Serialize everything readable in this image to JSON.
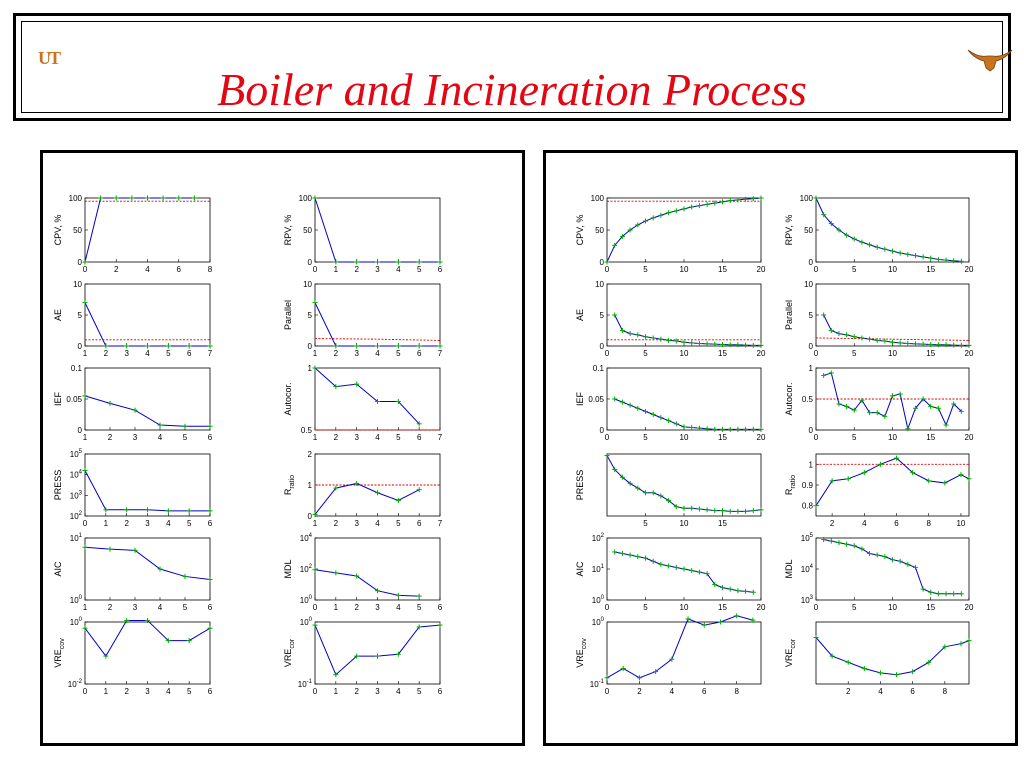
{
  "header": {
    "title": "Boiler and Incineration Process",
    "logo_text": "UT",
    "colors": {
      "title": "#e30613",
      "logo": "#c8741e",
      "series": "#0000cc",
      "marker": "#00aa00",
      "threshold": "#dd0000"
    }
  },
  "chart_data": [
    {
      "id": "L1",
      "panel": "left",
      "type": "line",
      "ylabel": "CPV, %",
      "ylog": false,
      "xlim": [
        0,
        8
      ],
      "xticks": [
        0,
        2,
        4,
        6,
        8
      ],
      "ylim": [
        0,
        100
      ],
      "yticks": [
        0,
        50,
        100
      ],
      "threshold": 95,
      "x": [
        0,
        1,
        2,
        3,
        4,
        5,
        6,
        7
      ],
      "y": [
        0,
        100,
        100,
        100,
        100,
        100,
        100,
        100
      ]
    },
    {
      "id": "L2",
      "panel": "left",
      "type": "line",
      "ylabel": "RPV, %",
      "ylog": false,
      "xlim": [
        0,
        6
      ],
      "xticks": [
        0,
        1,
        2,
        3,
        4,
        5,
        6
      ],
      "ylim": [
        0,
        100
      ],
      "yticks": [
        0,
        50,
        100
      ],
      "x": [
        0,
        1,
        2,
        3,
        4,
        5,
        6
      ],
      "y": [
        100,
        0,
        0,
        0,
        0,
        0,
        0
      ]
    },
    {
      "id": "L3",
      "panel": "left",
      "type": "line",
      "ylabel": "AE",
      "ylog": false,
      "xlim": [
        1,
        7
      ],
      "xticks": [
        1,
        2,
        3,
        4,
        5,
        6,
        7
      ],
      "ylim": [
        0,
        10
      ],
      "yticks": [
        0,
        5,
        10
      ],
      "threshold": 1,
      "x": [
        1,
        2,
        3,
        4,
        5,
        6,
        7
      ],
      "y": [
        7,
        0,
        0,
        0,
        0,
        0,
        0
      ]
    },
    {
      "id": "L4",
      "panel": "left",
      "type": "line",
      "ylabel": "Parallel",
      "ylog": false,
      "xlim": [
        1,
        7
      ],
      "xticks": [
        1,
        2,
        3,
        4,
        5,
        6,
        7
      ],
      "ylim": [
        0,
        10
      ],
      "yticks": [
        0,
        5,
        10
      ],
      "threshold_line": {
        "x": [
          1,
          4,
          7
        ],
        "y": [
          1.2,
          1.1,
          0.9
        ]
      },
      "x": [
        1,
        2,
        3,
        4,
        5,
        6,
        7
      ],
      "y": [
        7,
        0,
        0,
        0,
        0,
        0,
        0
      ]
    },
    {
      "id": "L5",
      "panel": "left",
      "type": "line",
      "ylabel": "IEF",
      "ylog": false,
      "xlim": [
        1,
        6
      ],
      "xticks": [
        1,
        2,
        3,
        4,
        5,
        6
      ],
      "ylim": [
        0,
        0.1
      ],
      "yticks": [
        0,
        0.05,
        0.1
      ],
      "x": [
        1,
        2,
        3,
        4,
        5,
        6
      ],
      "y": [
        0.055,
        0.043,
        0.032,
        0.008,
        0.006,
        0.006
      ]
    },
    {
      "id": "L6",
      "panel": "left",
      "type": "line",
      "ylabel": "Autocor.",
      "ylog": false,
      "xlim": [
        1,
        7
      ],
      "xticks": [
        1,
        2,
        3,
        4,
        5,
        6,
        7
      ],
      "ylim": [
        0.5,
        1
      ],
      "yticks": [
        0.5,
        1
      ],
      "threshold": 0.5,
      "x": [
        1,
        2,
        3,
        4,
        5,
        6
      ],
      "y": [
        1,
        0.85,
        0.87,
        0.73,
        0.73,
        0.55
      ]
    },
    {
      "id": "L7",
      "panel": "left",
      "type": "line",
      "ylabel": "PRESS",
      "ylog": true,
      "xlim": [
        0,
        6
      ],
      "xticks": [
        0,
        1,
        2,
        3,
        4,
        5,
        6
      ],
      "ylim": [
        2,
        5
      ],
      "yticks": [
        2,
        3,
        4,
        5
      ],
      "x": [
        0,
        1,
        2,
        3,
        4,
        5,
        6
      ],
      "y": [
        4.2,
        2.3,
        2.3,
        2.3,
        2.25,
        2.25,
        2.25
      ]
    },
    {
      "id": "L8",
      "panel": "left",
      "type": "line",
      "ylabel": "R",
      "ylabel_sub": "ratio",
      "ylog": false,
      "xlim": [
        1,
        7
      ],
      "xticks": [
        1,
        2,
        3,
        4,
        5,
        6,
        7
      ],
      "ylim": [
        0,
        2
      ],
      "yticks": [
        0,
        1,
        2
      ],
      "threshold": 1,
      "x": [
        1,
        2,
        3,
        4,
        5,
        6
      ],
      "y": [
        0.05,
        0.9,
        1.05,
        0.75,
        0.5,
        0.85
      ]
    },
    {
      "id": "L9",
      "panel": "left",
      "type": "line",
      "ylabel": "AIC",
      "ylog": true,
      "xlim": [
        1,
        6
      ],
      "xticks": [
        1,
        2,
        3,
        4,
        5,
        6
      ],
      "ylim": [
        0,
        1
      ],
      "yticks": [
        0,
        1
      ],
      "x": [
        1,
        2,
        3,
        4,
        5,
        6
      ],
      "y": [
        0.85,
        0.82,
        0.8,
        0.5,
        0.38,
        0.33
      ]
    },
    {
      "id": "L10",
      "panel": "left",
      "type": "line",
      "ylabel": "MDL",
      "ylog": true,
      "xlim": [
        0,
        6
      ],
      "xticks": [
        0,
        1,
        2,
        3,
        4,
        5,
        6
      ],
      "ylim": [
        0,
        4
      ],
      "yticks": [
        0,
        2,
        4
      ],
      "x": [
        0,
        1,
        2,
        3,
        4,
        5,
        6
      ],
      "y": [
        1.95,
        1.75,
        1.55,
        0.6,
        0.3,
        0.25,
        null
      ]
    },
    {
      "id": "L11",
      "panel": "left",
      "type": "line",
      "ylabel": "VRE",
      "ylabel_sub": "cov",
      "ylog": true,
      "xlim": [
        0,
        6
      ],
      "xticks": [
        0,
        1,
        2,
        3,
        4,
        5,
        6
      ],
      "ylim": [
        -2,
        0
      ],
      "yticks": [
        -2,
        0
      ],
      "x": [
        0,
        1,
        2,
        3,
        4,
        5,
        6
      ],
      "y": [
        -0.2,
        -1.1,
        0.05,
        0.05,
        -0.6,
        -0.6,
        -0.2
      ]
    },
    {
      "id": "L12",
      "panel": "left",
      "type": "line",
      "ylabel": "VRE",
      "ylabel_sub": "cor",
      "ylog": true,
      "xlim": [
        0,
        6
      ],
      "xticks": [
        0,
        1,
        2,
        3,
        4,
        5,
        6
      ],
      "ylim": [
        -1,
        0
      ],
      "yticks": [
        -1,
        0
      ],
      "x": [
        0,
        1,
        2,
        3,
        4,
        5,
        6
      ],
      "y": [
        -0.05,
        -0.85,
        -0.55,
        -0.55,
        -0.52,
        -0.08,
        -0.05
      ]
    },
    {
      "id": "R1",
      "panel": "right",
      "type": "line",
      "ylabel": "CPV, %",
      "ylog": false,
      "xlim": [
        0,
        20
      ],
      "xticks": [
        0,
        5,
        10,
        15,
        20
      ],
      "ylim": [
        0,
        100
      ],
      "yticks": [
        0,
        50,
        100
      ],
      "threshold": 95,
      "x": [
        0,
        1,
        2,
        3,
        4,
        5,
        6,
        7,
        8,
        9,
        10,
        11,
        12,
        13,
        14,
        15,
        16,
        17,
        18,
        19,
        20
      ],
      "y": [
        0,
        26,
        40,
        50,
        58,
        64,
        69,
        73,
        77,
        80,
        83,
        86,
        88,
        90,
        92,
        94,
        96,
        97,
        98,
        99,
        100
      ]
    },
    {
      "id": "R2",
      "panel": "right",
      "type": "line",
      "ylabel": "RPV, %",
      "ylog": false,
      "xlim": [
        0,
        20
      ],
      "xticks": [
        0,
        5,
        10,
        15,
        20
      ],
      "ylim": [
        0,
        100
      ],
      "yticks": [
        0,
        50,
        100
      ],
      "x": [
        0,
        1,
        2,
        3,
        4,
        5,
        6,
        7,
        8,
        9,
        10,
        11,
        12,
        13,
        14,
        15,
        16,
        17,
        18,
        19
      ],
      "y": [
        100,
        74,
        60,
        50,
        42,
        36,
        31,
        27,
        23,
        20,
        17,
        14,
        12,
        10,
        8,
        6,
        4,
        3,
        2,
        1
      ]
    },
    {
      "id": "R3",
      "panel": "right",
      "type": "line",
      "ylabel": "AE",
      "ylog": false,
      "xlim": [
        0,
        20
      ],
      "xticks": [
        0,
        5,
        10,
        15,
        20
      ],
      "ylim": [
        0,
        10
      ],
      "yticks": [
        0,
        5,
        10
      ],
      "threshold": 1,
      "x": [
        1,
        2,
        3,
        4,
        5,
        6,
        7,
        8,
        9,
        10,
        11,
        12,
        13,
        14,
        15,
        16,
        17,
        18,
        19,
        20
      ],
      "y": [
        5,
        2.5,
        2,
        1.8,
        1.5,
        1.3,
        1.1,
        0.9,
        0.8,
        0.6,
        0.5,
        0.4,
        0.35,
        0.3,
        0.25,
        0.2,
        0.2,
        0.15,
        0.1,
        0.1
      ]
    },
    {
      "id": "R4",
      "panel": "right",
      "type": "line",
      "ylabel": "Parallel",
      "ylog": false,
      "xlim": [
        0,
        20
      ],
      "xticks": [
        0,
        5,
        10,
        15,
        20
      ],
      "ylim": [
        0,
        10
      ],
      "yticks": [
        0,
        5,
        10
      ],
      "threshold_line": {
        "x": [
          0,
          10,
          20
        ],
        "y": [
          1.3,
          1.1,
          0.9
        ]
      },
      "x": [
        1,
        2,
        3,
        4,
        5,
        6,
        7,
        8,
        9,
        10,
        11,
        12,
        13,
        14,
        15,
        16,
        17,
        18,
        19,
        20
      ],
      "y": [
        5,
        2.5,
        2,
        1.8,
        1.5,
        1.3,
        1.1,
        0.9,
        0.8,
        0.6,
        0.5,
        0.4,
        0.35,
        0.3,
        0.25,
        0.2,
        0.2,
        0.15,
        0.1,
        0.1
      ]
    },
    {
      "id": "R5",
      "panel": "right",
      "type": "line",
      "ylabel": "IEF",
      "ylog": false,
      "xlim": [
        0,
        20
      ],
      "xticks": [
        0,
        5,
        10,
        15,
        20
      ],
      "ylim": [
        0,
        0.1
      ],
      "yticks": [
        0,
        0.05,
        0.1
      ],
      "x": [
        1,
        2,
        3,
        4,
        5,
        6,
        7,
        8,
        9,
        10,
        11,
        12,
        13,
        14,
        15,
        16,
        17,
        18,
        19,
        20
      ],
      "y": [
        0.05,
        0.045,
        0.04,
        0.035,
        0.03,
        0.025,
        0.02,
        0.015,
        0.01,
        0.005,
        0.004,
        0.003,
        0.002,
        0.001,
        0.001,
        0.001,
        0.001,
        0.001,
        0.001,
        0.001
      ]
    },
    {
      "id": "R6",
      "panel": "right",
      "type": "line",
      "ylabel": "Autocor.",
      "ylog": false,
      "xlim": [
        0,
        20
      ],
      "xticks": [
        0,
        5,
        10,
        15,
        20
      ],
      "ylim": [
        0,
        1
      ],
      "yticks": [
        0,
        0.5,
        1
      ],
      "threshold": 0.5,
      "x": [
        1,
        2,
        3,
        4,
        5,
        6,
        7,
        8,
        9,
        10,
        11,
        12,
        13,
        14,
        15,
        16,
        17,
        18,
        19
      ],
      "y": [
        0.88,
        0.92,
        0.42,
        0.38,
        0.32,
        0.48,
        0.28,
        0.28,
        0.22,
        0.55,
        0.58,
        0.02,
        0.35,
        0.5,
        0.38,
        0.35,
        0.08,
        0.42,
        0.3
      ]
    },
    {
      "id": "R7",
      "panel": "right",
      "type": "line",
      "ylabel": "PRESS",
      "ylog": true,
      "xlim": [
        0,
        20
      ],
      "xticks": [
        5,
        10,
        15
      ],
      "ylim": [
        0,
        4
      ],
      "yticks": [],
      "x": [
        0,
        1,
        2,
        3,
        4,
        5,
        6,
        7,
        8,
        9,
        10,
        11,
        12,
        13,
        14,
        15,
        16,
        17,
        18,
        19,
        20
      ],
      "y": [
        3.9,
        3.0,
        2.5,
        2.1,
        1.8,
        1.5,
        1.5,
        1.3,
        1.0,
        0.6,
        0.5,
        0.5,
        0.45,
        0.4,
        0.35,
        0.35,
        0.3,
        0.3,
        0.3,
        0.35,
        0.4
      ]
    },
    {
      "id": "R8",
      "panel": "right",
      "type": "line",
      "ylabel": "R",
      "ylabel_sub": "ratio",
      "ylog": false,
      "xlim": [
        1,
        10.5
      ],
      "xticks": [
        2,
        4,
        6,
        8,
        10
      ],
      "ylim": [
        0.75,
        1.05
      ],
      "yticks": [
        0.8,
        0.9,
        1
      ],
      "threshold": 1,
      "x": [
        1,
        2,
        3,
        4,
        5,
        6,
        7,
        8,
        9,
        10,
        10.5
      ],
      "y": [
        0.8,
        0.92,
        0.93,
        0.96,
        1.0,
        1.03,
        0.96,
        0.92,
        0.91,
        0.95,
        0.93
      ]
    },
    {
      "id": "R9",
      "panel": "right",
      "type": "line",
      "ylabel": "AIC",
      "ylog": true,
      "xlim": [
        0,
        20
      ],
      "xticks": [
        0,
        5,
        10,
        15,
        20
      ],
      "ylim": [
        0,
        2
      ],
      "yticks": [
        0,
        1,
        2
      ],
      "x": [
        1,
        2,
        3,
        4,
        5,
        6,
        7,
        8,
        9,
        10,
        11,
        12,
        13,
        14,
        15,
        16,
        17,
        18,
        19
      ],
      "y": [
        1.55,
        1.5,
        1.45,
        1.4,
        1.35,
        1.25,
        1.15,
        1.1,
        1.05,
        1.0,
        0.95,
        0.9,
        0.85,
        0.5,
        0.4,
        0.35,
        0.3,
        0.28,
        0.25
      ]
    },
    {
      "id": "R10",
      "panel": "right",
      "type": "line",
      "ylabel": "MDL",
      "ylog": true,
      "xlim": [
        0,
        20
      ],
      "xticks": [
        0,
        5,
        10,
        15,
        20
      ],
      "ylim": [
        3,
        5
      ],
      "yticks": [
        3,
        4,
        5
      ],
      "x": [
        1,
        2,
        3,
        4,
        5,
        6,
        7,
        8,
        9,
        10,
        11,
        12,
        13,
        14,
        15,
        16,
        17,
        18,
        19
      ],
      "y": [
        4.95,
        4.9,
        4.85,
        4.8,
        4.75,
        4.65,
        4.5,
        4.45,
        4.4,
        4.3,
        4.25,
        4.15,
        4.05,
        3.35,
        3.25,
        3.2,
        3.2,
        3.2,
        3.2
      ]
    },
    {
      "id": "R11",
      "panel": "right",
      "type": "line",
      "ylabel": "VRE",
      "ylabel_sub": "cov",
      "ylog": true,
      "xlim": [
        0,
        9.5
      ],
      "xticks": [
        0,
        2,
        4,
        6,
        8
      ],
      "ylim": [
        -1,
        0
      ],
      "yticks": [
        -1,
        0
      ],
      "x": [
        0,
        1,
        2,
        3,
        4,
        5,
        6,
        7,
        8,
        9
      ],
      "y": [
        -0.9,
        -0.75,
        -0.9,
        -0.8,
        -0.6,
        0.05,
        -0.05,
        0,
        0.1,
        0.03
      ]
    },
    {
      "id": "R12",
      "panel": "right",
      "type": "line",
      "ylabel": "VRE",
      "ylabel_sub": "cor",
      "ylog": true,
      "xlim": [
        0,
        9.5
      ],
      "xticks": [
        2,
        4,
        6,
        8
      ],
      "ylim": [
        -1,
        0
      ],
      "yticks": [],
      "x": [
        0,
        1,
        2,
        3,
        4,
        5,
        6,
        7,
        8,
        9,
        9.5
      ],
      "y": [
        -0.25,
        -0.55,
        -0.65,
        -0.75,
        -0.82,
        -0.85,
        -0.8,
        -0.65,
        -0.4,
        -0.35,
        -0.3
      ]
    }
  ]
}
